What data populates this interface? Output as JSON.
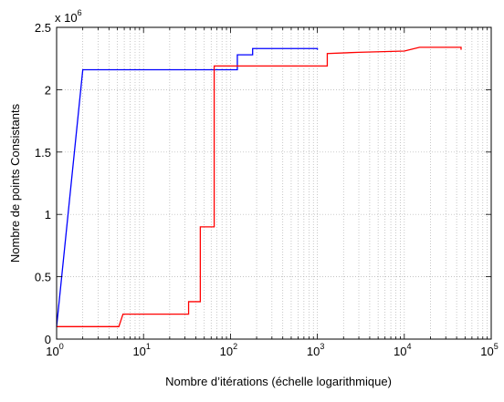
{
  "chart_data": {
    "type": "line",
    "xlabel": "Nombre d’itérations (échelle logarithmique)",
    "ylabel": "Nombre de points Consistants",
    "y_multiplier": {
      "base": "x 10",
      "exponent": "6"
    },
    "x_scale": "log",
    "xlim": [
      1,
      100000
    ],
    "ylim": [
      0,
      2500000
    ],
    "grid": "on (dotted, major and minor)",
    "x_ticks": [
      {
        "value": 1,
        "base": "10",
        "exp": "0"
      },
      {
        "value": 10,
        "base": "10",
        "exp": "1"
      },
      {
        "value": 100,
        "base": "10",
        "exp": "2"
      },
      {
        "value": 1000,
        "base": "10",
        "exp": "3"
      },
      {
        "value": 10000,
        "base": "10",
        "exp": "4"
      },
      {
        "value": 100000,
        "base": "10",
        "exp": "5"
      }
    ],
    "y_ticks": [
      {
        "value": 0,
        "label": "0"
      },
      {
        "value": 500000,
        "label": "0.5"
      },
      {
        "value": 1000000,
        "label": "1"
      },
      {
        "value": 1500000,
        "label": "1.5"
      },
      {
        "value": 2000000,
        "label": "2"
      },
      {
        "value": 2500000,
        "label": "2.5"
      }
    ],
    "series": [
      {
        "color": "#0000ff",
        "step": false,
        "points": [
          [
            1,
            100000
          ],
          [
            2,
            2160000
          ],
          [
            120,
            2160000
          ],
          [
            120,
            2280000
          ],
          [
            180,
            2280000
          ],
          [
            180,
            2330000
          ],
          [
            1000,
            2330000
          ],
          [
            1000,
            2320000
          ]
        ]
      },
      {
        "color": "#ff0000",
        "step": true,
        "points": [
          [
            1,
            100000
          ],
          [
            5.2,
            100000
          ],
          [
            5.8,
            200000
          ],
          [
            33,
            200000
          ],
          [
            33,
            300000
          ],
          [
            45,
            300000
          ],
          [
            45,
            900000
          ],
          [
            65,
            900000
          ],
          [
            65,
            2190000
          ],
          [
            1300,
            2190000
          ],
          [
            1300,
            2290000
          ],
          [
            3000,
            2300000
          ],
          [
            10000,
            2310000
          ],
          [
            15000,
            2340000
          ],
          [
            45000,
            2340000
          ],
          [
            45000,
            2320000
          ]
        ]
      }
    ]
  }
}
